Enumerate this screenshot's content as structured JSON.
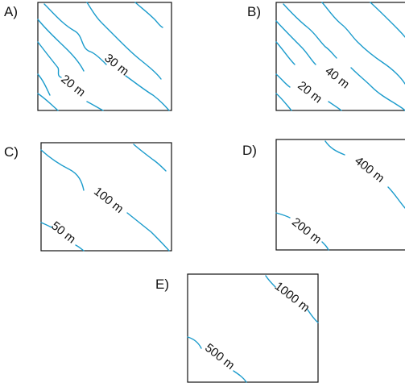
{
  "colors": {
    "contour": "#1a9bcc",
    "frame": "#111111",
    "text": "#111111",
    "background": "#ffffff"
  },
  "panels": [
    {
      "id": "A",
      "letter": "A)",
      "contour_labels": [
        "30 m",
        "20 m"
      ]
    },
    {
      "id": "B",
      "letter": "B)",
      "contour_labels": [
        "40 m",
        "20 m"
      ]
    },
    {
      "id": "C",
      "letter": "C)",
      "contour_labels": [
        "100 m",
        "50 m"
      ]
    },
    {
      "id": "D",
      "letter": "D)",
      "contour_labels": [
        "400 m",
        "200 m"
      ]
    },
    {
      "id": "E",
      "letter": "E)",
      "contour_labels": [
        "1000 m",
        "500 m"
      ]
    }
  ]
}
